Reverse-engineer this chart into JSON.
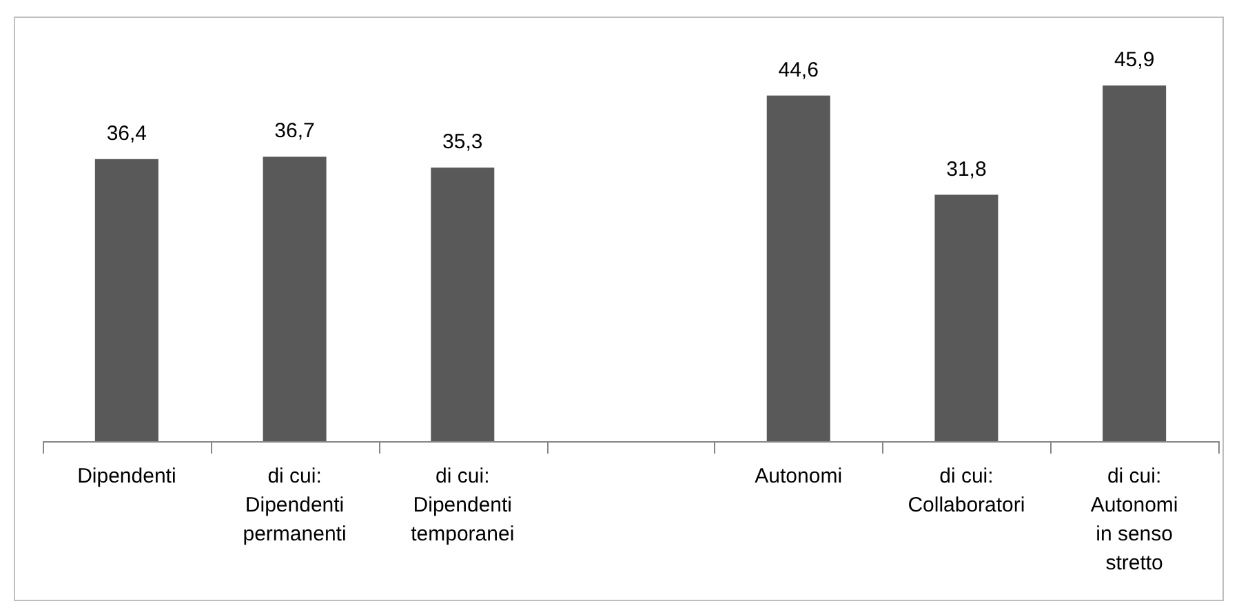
{
  "chart_data": {
    "type": "bar",
    "categories": [
      "Dipendenti",
      "di cui: Dipendenti permanenti",
      "di cui: Dipendenti temporanei",
      null,
      "Autonomi",
      "di cui: Collaboratori",
      "di cui: Autonomi in senso stretto"
    ],
    "values": [
      36.4,
      36.7,
      35.3,
      null,
      44.6,
      31.8,
      45.9
    ],
    "value_labels": [
      "36,4",
      "36,7",
      "35,3",
      null,
      "44,6",
      "31,8",
      "45,9"
    ],
    "color": "#595959"
  }
}
